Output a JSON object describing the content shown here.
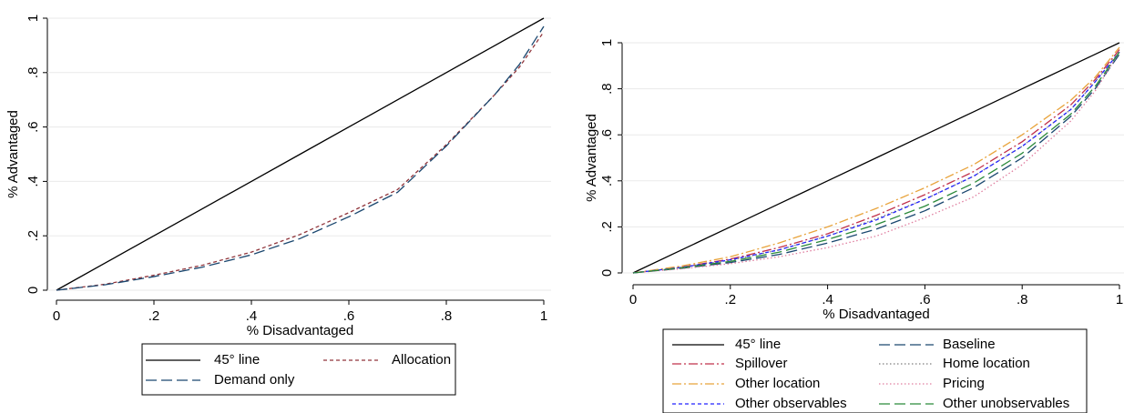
{
  "chart_data": [
    {
      "type": "line",
      "x_label": "% Disadvantaged",
      "y_label": "% Advantaged",
      "x": [
        0,
        0.1,
        0.2,
        0.3,
        0.4,
        0.5,
        0.6,
        0.7,
        0.8,
        0.9,
        0.95,
        1
      ],
      "series": [
        {
          "name": "45° line",
          "color": "#000000",
          "style": "solid",
          "values": [
            0,
            0.1,
            0.2,
            0.3,
            0.4,
            0.5,
            0.6,
            0.7,
            0.8,
            0.9,
            0.95,
            1
          ]
        },
        {
          "name": "Allocation",
          "color": "#90353b",
          "style": "shortdash",
          "values": [
            0,
            0.022,
            0.055,
            0.092,
            0.14,
            0.205,
            0.285,
            0.37,
            0.535,
            0.72,
            0.82,
            0.95
          ]
        },
        {
          "name": "Demand only",
          "color": "#1a476f",
          "style": "longdash",
          "values": [
            0,
            0.02,
            0.05,
            0.085,
            0.13,
            0.19,
            0.27,
            0.36,
            0.53,
            0.72,
            0.83,
            0.97
          ]
        }
      ],
      "xlim": [
        0,
        1
      ],
      "ylim": [
        0,
        1
      ],
      "xticks": [
        0,
        {
          "value": 0.2,
          "label": ".2"
        },
        {
          "value": 0.4,
          "label": ".4"
        },
        {
          "value": 0.6,
          "label": ".6"
        },
        {
          "value": 0.8,
          "label": ".8"
        },
        1
      ],
      "yticks": [
        0,
        {
          "value": 0.2,
          "label": ".2"
        },
        {
          "value": 0.4,
          "label": ".4"
        },
        {
          "value": 0.6,
          "label": ".6"
        },
        {
          "value": 0.8,
          "label": ".8"
        },
        1
      ],
      "grid": true,
      "legend": "bottom"
    },
    {
      "type": "line",
      "x_label": "% Disadvantaged",
      "y_label": "% Advantaged",
      "x": [
        0,
        0.1,
        0.2,
        0.3,
        0.4,
        0.5,
        0.6,
        0.7,
        0.8,
        0.9,
        0.95,
        1
      ],
      "series": [
        {
          "name": "45° line",
          "color": "#000000",
          "style": "solid",
          "values": [
            0,
            0.1,
            0.2,
            0.3,
            0.4,
            0.5,
            0.6,
            0.7,
            0.8,
            0.9,
            0.95,
            1
          ]
        },
        {
          "name": "Baseline",
          "color": "#1a476f",
          "style": "longdash",
          "values": [
            0,
            0.02,
            0.045,
            0.08,
            0.13,
            0.19,
            0.27,
            0.37,
            0.5,
            0.68,
            0.8,
            0.95
          ]
        },
        {
          "name": "Spillover",
          "color": "#c0304a",
          "style": "dashdot",
          "values": [
            0,
            0.025,
            0.06,
            0.11,
            0.17,
            0.25,
            0.34,
            0.44,
            0.57,
            0.73,
            0.84,
            0.97
          ]
        },
        {
          "name": "Home location",
          "color": "#7f7f7f",
          "style": "dot",
          "values": [
            0,
            0.024,
            0.055,
            0.1,
            0.16,
            0.235,
            0.32,
            0.42,
            0.55,
            0.71,
            0.83,
            0.96
          ]
        },
        {
          "name": "Other location",
          "color": "#e8a33b",
          "style": "dashdot",
          "values": [
            0,
            0.03,
            0.07,
            0.13,
            0.2,
            0.28,
            0.37,
            0.47,
            0.6,
            0.75,
            0.85,
            0.98
          ]
        },
        {
          "name": "Pricing",
          "color": "#e07fa0",
          "style": "dot",
          "values": [
            0,
            0.018,
            0.04,
            0.07,
            0.11,
            0.16,
            0.24,
            0.33,
            0.47,
            0.66,
            0.79,
            0.96
          ]
        },
        {
          "name": "Other observables",
          "color": "#2323ff",
          "style": "shortdash",
          "values": [
            0,
            0.024,
            0.057,
            0.1,
            0.16,
            0.23,
            0.32,
            0.42,
            0.55,
            0.71,
            0.83,
            0.96
          ]
        },
        {
          "name": "Other unobservables",
          "color": "#2b8a3a",
          "style": "longdash",
          "values": [
            0,
            0.022,
            0.05,
            0.09,
            0.145,
            0.21,
            0.29,
            0.39,
            0.52,
            0.69,
            0.81,
            0.96
          ]
        }
      ],
      "xlim": [
        0,
        1
      ],
      "ylim": [
        0,
        1
      ],
      "xticks": [
        0,
        {
          "value": 0.2,
          "label": ".2"
        },
        {
          "value": 0.4,
          "label": ".4"
        },
        {
          "value": 0.6,
          "label": ".6"
        },
        {
          "value": 0.8,
          "label": ".8"
        },
        1
      ],
      "yticks": [
        0,
        {
          "value": 0.2,
          "label": ".2"
        },
        {
          "value": 0.4,
          "label": ".4"
        },
        {
          "value": 0.6,
          "label": ".6"
        },
        {
          "value": 0.8,
          "label": ".8"
        },
        1
      ],
      "grid": true,
      "legend": "bottom"
    }
  ]
}
